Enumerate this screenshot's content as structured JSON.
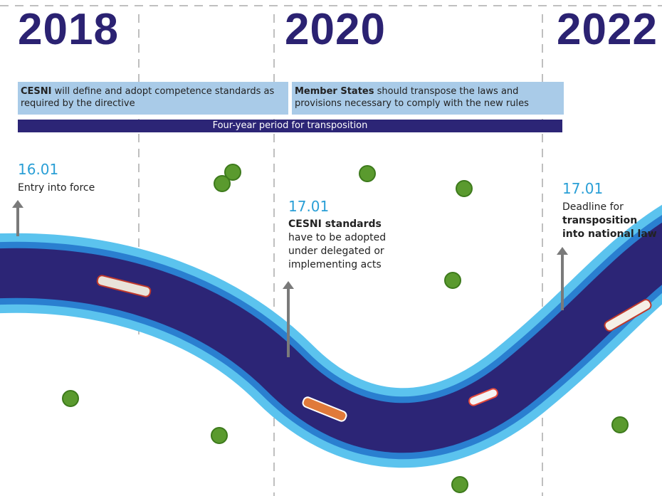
{
  "timeline": {
    "years": [
      "2018",
      "2020",
      "2022"
    ],
    "phases": [
      {
        "bold": "CESNI",
        "text": "will define and adopt competence standards as required by the directive"
      },
      {
        "bold": "Member States",
        "text": "should transpose the laws and provisions necessary to comply with the new rules"
      }
    ],
    "period": "Four-year period for transposition",
    "milestones": [
      {
        "date": "16.01",
        "text": "Entry into force"
      },
      {
        "date": "17.01",
        "bold": "CESNI standards",
        "text": "have to be adopted under delegated or implementing acts"
      },
      {
        "date": "17.01",
        "text": "Deadline for",
        "bold": "transposition into national law"
      }
    ]
  }
}
